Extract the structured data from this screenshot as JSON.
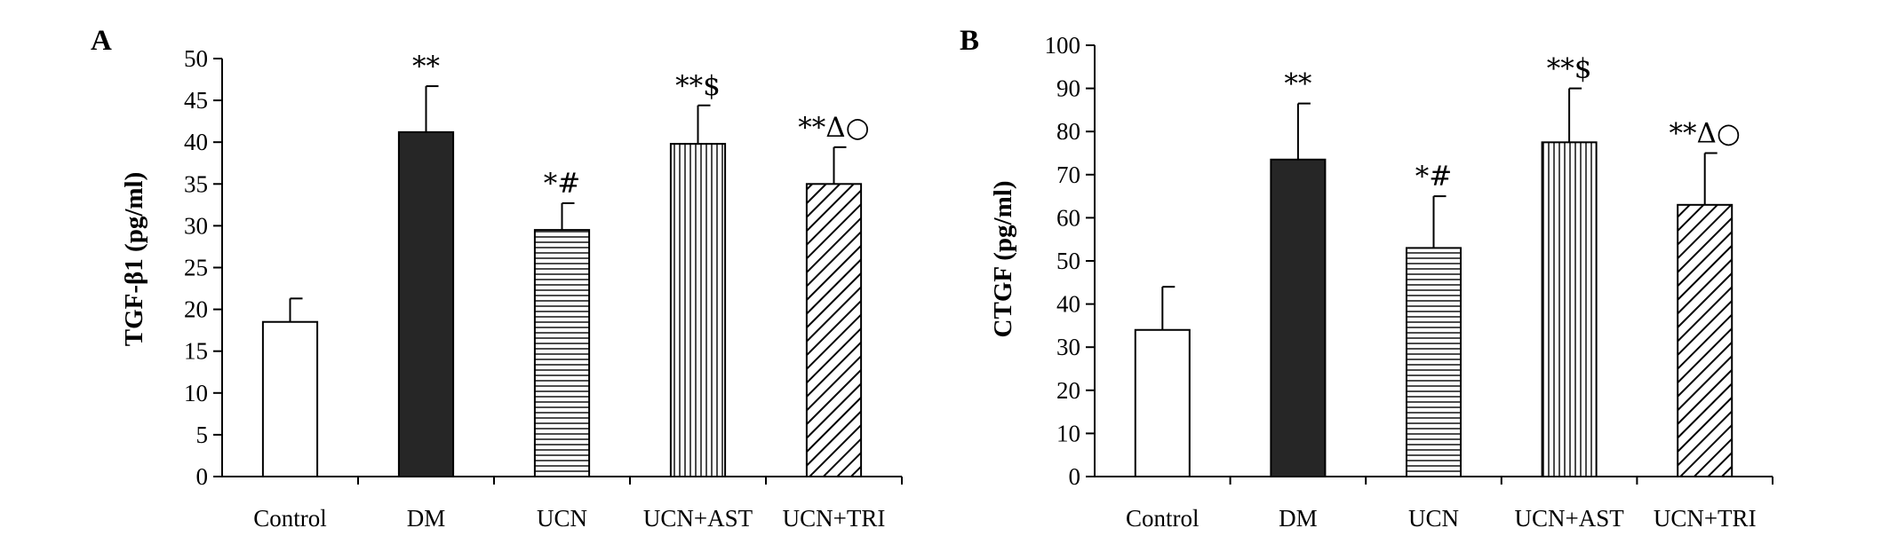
{
  "chart_data": [
    {
      "type": "bar",
      "panel": "A",
      "ylabel": "TGF-β1 (pg/ml)",
      "ylim": [
        0,
        50
      ],
      "yticks": [
        0,
        5,
        10,
        15,
        20,
        25,
        30,
        35,
        40,
        45,
        50
      ],
      "categories": [
        "Control",
        "DM",
        "UCN",
        "UCN+AST",
        "UCN+TRI"
      ],
      "values": [
        18.5,
        41.2,
        29.5,
        39.8,
        35.0
      ],
      "errors": [
        2.8,
        5.5,
        3.2,
        4.6,
        4.4
      ],
      "annotations": [
        "",
        "**",
        "*#",
        "**$",
        "**Δ○"
      ],
      "patterns": [
        "white",
        "dark",
        "horizontal",
        "vertical",
        "diagonal"
      ],
      "grid": false,
      "legend": "none"
    },
    {
      "type": "bar",
      "panel": "B",
      "ylabel": "CTGF (pg/ml)",
      "ylim": [
        0,
        100
      ],
      "yticks": [
        0,
        10,
        20,
        30,
        40,
        50,
        60,
        70,
        80,
        90,
        100
      ],
      "categories": [
        "Control",
        "DM",
        "UCN",
        "UCN+AST",
        "UCN+TRI"
      ],
      "values": [
        34,
        73.5,
        53,
        77.5,
        63
      ],
      "errors": [
        10,
        13,
        12,
        12.5,
        12
      ],
      "annotations": [
        "",
        "**",
        "*#",
        "**$",
        "**Δ○"
      ],
      "patterns": [
        "white",
        "dark",
        "horizontal",
        "vertical",
        "diagonal"
      ],
      "grid": false,
      "legend": "none"
    }
  ],
  "colors": {
    "axis": "#000000",
    "dark_bar": "#262626",
    "white_bar": "#ffffff"
  }
}
